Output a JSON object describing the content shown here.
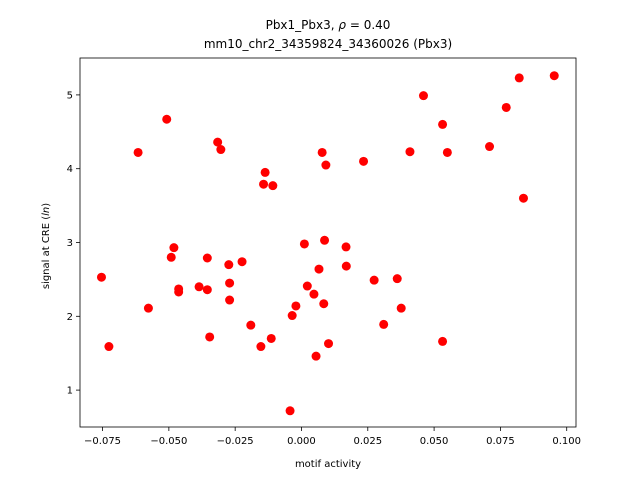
{
  "chart_data": {
    "type": "scatter",
    "title_line1": "Pbx1_Pbx3, ρ = 0.40",
    "title_line2": "mm10_chr2_34359824_34360026 (Pbx3)",
    "xlabel": "motif activity",
    "ylabel": "signal at CRE (ln)",
    "xlim": [
      -0.0835,
      0.1035
    ],
    "ylim": [
      0.5,
      5.5
    ],
    "xticks": [
      -0.075,
      -0.05,
      -0.025,
      0.0,
      0.025,
      0.05,
      0.075,
      0.1
    ],
    "xtick_labels": [
      "−0.075",
      "−0.050",
      "−0.025",
      "0.000",
      "0.025",
      "0.050",
      "0.075",
      "0.100"
    ],
    "yticks": [
      1,
      2,
      3,
      4,
      5
    ],
    "ytick_labels": [
      "1",
      "2",
      "3",
      "4",
      "5"
    ],
    "grid": false,
    "marker_color": "#ff0000",
    "points": [
      {
        "x": -0.0754,
        "y": 2.53
      },
      {
        "x": -0.0726,
        "y": 1.59
      },
      {
        "x": -0.0616,
        "y": 4.22
      },
      {
        "x": -0.0577,
        "y": 2.11
      },
      {
        "x": -0.0508,
        "y": 4.67
      },
      {
        "x": -0.0491,
        "y": 2.8
      },
      {
        "x": -0.0481,
        "y": 2.93
      },
      {
        "x": -0.0463,
        "y": 2.37
      },
      {
        "x": -0.0463,
        "y": 2.33
      },
      {
        "x": -0.0386,
        "y": 2.4
      },
      {
        "x": -0.0355,
        "y": 2.36
      },
      {
        "x": -0.0355,
        "y": 2.79
      },
      {
        "x": -0.0346,
        "y": 1.72
      },
      {
        "x": -0.0316,
        "y": 4.36
      },
      {
        "x": -0.0304,
        "y": 4.26
      },
      {
        "x": -0.0274,
        "y": 2.7
      },
      {
        "x": -0.0271,
        "y": 2.45
      },
      {
        "x": -0.0271,
        "y": 2.22
      },
      {
        "x": -0.0224,
        "y": 2.74
      },
      {
        "x": -0.0191,
        "y": 1.88
      },
      {
        "x": -0.0153,
        "y": 1.59
      },
      {
        "x": -0.0143,
        "y": 3.79
      },
      {
        "x": -0.0137,
        "y": 3.95
      },
      {
        "x": -0.0114,
        "y": 1.7
      },
      {
        "x": -0.0108,
        "y": 3.77
      },
      {
        "x": -0.0043,
        "y": 0.72
      },
      {
        "x": -0.0035,
        "y": 2.01
      },
      {
        "x": -0.0021,
        "y": 2.14
      },
      {
        "x": 0.0011,
        "y": 2.98
      },
      {
        "x": 0.0022,
        "y": 2.41
      },
      {
        "x": 0.0047,
        "y": 2.3
      },
      {
        "x": 0.0055,
        "y": 1.46
      },
      {
        "x": 0.0066,
        "y": 2.64
      },
      {
        "x": 0.0078,
        "y": 4.22
      },
      {
        "x": 0.0084,
        "y": 2.17
      },
      {
        "x": 0.0087,
        "y": 3.03
      },
      {
        "x": 0.0092,
        "y": 4.05
      },
      {
        "x": 0.0102,
        "y": 1.63
      },
      {
        "x": 0.0168,
        "y": 2.94
      },
      {
        "x": 0.0169,
        "y": 2.68
      },
      {
        "x": 0.0234,
        "y": 4.1
      },
      {
        "x": 0.0274,
        "y": 2.49
      },
      {
        "x": 0.031,
        "y": 1.89
      },
      {
        "x": 0.0361,
        "y": 2.51
      },
      {
        "x": 0.0376,
        "y": 2.11
      },
      {
        "x": 0.0409,
        "y": 4.23
      },
      {
        "x": 0.046,
        "y": 4.99
      },
      {
        "x": 0.0532,
        "y": 4.6
      },
      {
        "x": 0.0532,
        "y": 1.66
      },
      {
        "x": 0.055,
        "y": 4.22
      },
      {
        "x": 0.0709,
        "y": 4.3
      },
      {
        "x": 0.0772,
        "y": 4.83
      },
      {
        "x": 0.0821,
        "y": 5.23
      },
      {
        "x": 0.0837,
        "y": 3.6
      },
      {
        "x": 0.0953,
        "y": 5.26
      }
    ]
  }
}
